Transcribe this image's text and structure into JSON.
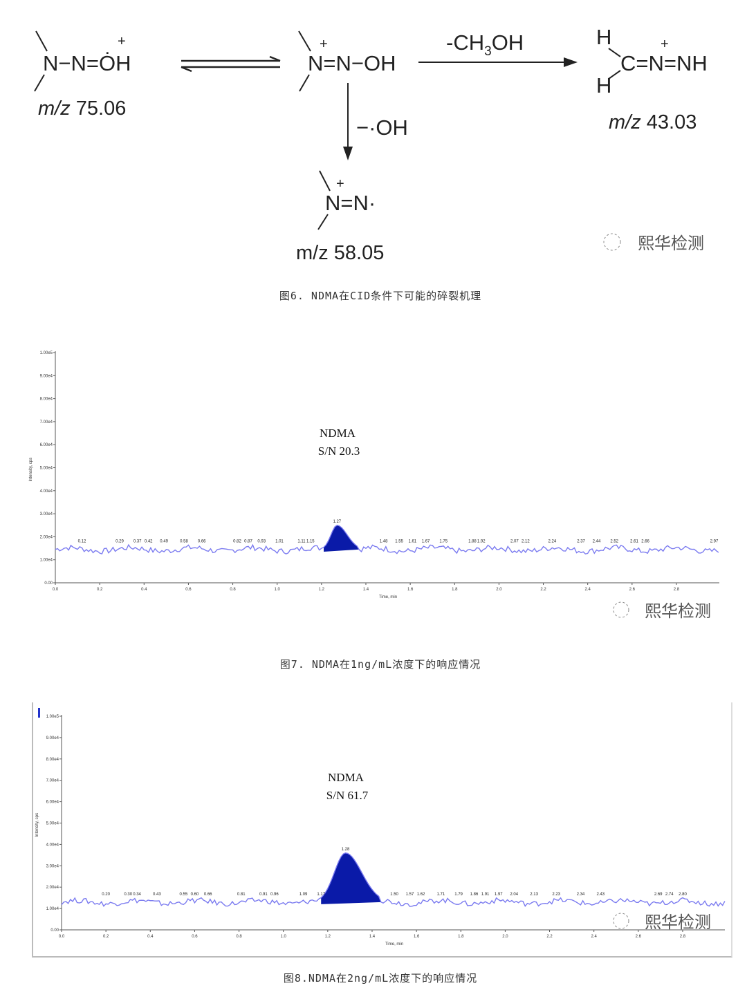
{
  "scheme": {
    "structures": {
      "reactant": {
        "formula": "N−N=ȮH",
        "charge": "+",
        "mz": "75.06"
      },
      "intermediate": {
        "formula": "N=N−OH",
        "charge": "+"
      },
      "product_right": {
        "h_top": "H",
        "formula": "C=N=NH",
        "h_bottom": "H",
        "charge": "+",
        "mz": "43.03"
      },
      "product_down": {
        "formula": "N=N·",
        "charge": "+",
        "mz": "58.05"
      }
    },
    "mz_prefix": "m/z",
    "loss_right": "-CH",
    "loss_right_sub": "3",
    "loss_right_tail": "OH",
    "loss_down": "−·OH",
    "logo": "熙华检测"
  },
  "captions": {
    "fig6": "图6. NDMA在CID条件下可能的碎裂机理",
    "fig7": "图7. NDMA在1ng/mL浓度下的响应情况",
    "fig8": "图8.NDMA在2ng/mL浓度下的响应情况"
  },
  "chart_data": [
    {
      "type": "line",
      "title": "",
      "xlabel": "Time, min",
      "ylabel": "Intensity, cps",
      "xlim": [
        0,
        3.0
      ],
      "ylim": [
        0,
        100000
      ],
      "x_ticks": [
        "0.0",
        "0.2",
        "0.4",
        "0.6",
        "0.8",
        "1.0",
        "1.2",
        "1.4",
        "1.6",
        "1.8",
        "2.0",
        "2.2",
        "2.4",
        "2.6",
        "2.8"
      ],
      "y_ticks": [
        "0.00",
        "1.00e4",
        "2.00e4",
        "3.00e4",
        "4.00e4",
        "5.00e4",
        "6.00e4",
        "7.00e4",
        "8.00e4",
        "9.00e4",
        "1.00e5"
      ],
      "series_color": "#7b7bf0",
      "peak_fill_color": "#0a1aa8",
      "baseline": 14500,
      "peak": {
        "name": "NDMA",
        "sn_label": "S/N 20.3",
        "apex_time": 1.27,
        "apex_intensity": 25000,
        "start": 1.21,
        "end": 1.37
      },
      "peak_labels": [
        "0.12",
        "0.29",
        "0.37",
        "0.42",
        "0.49",
        "0.58",
        "0.66",
        "0.82",
        "0.87",
        "0.93",
        "1.01",
        "1.11",
        "1.15",
        "1.27",
        "1.48",
        "1.55",
        "1.61",
        "1.67",
        "1.75",
        "1.88",
        "1.92",
        "2.07",
        "2.12",
        "2.24",
        "2.37",
        "2.44",
        "2.52",
        "2.61",
        "2.66",
        "2.97"
      ],
      "watermark": "熙华检测"
    },
    {
      "type": "line",
      "title": "",
      "xlabel": "Time, min",
      "ylabel": "Intensity, cps",
      "xlim": [
        0,
        3.0
      ],
      "ylim": [
        0,
        100000
      ],
      "x_ticks": [
        "0.0",
        "0.2",
        "0.4",
        "0.6",
        "0.8",
        "1.0",
        "1.2",
        "1.4",
        "1.6",
        "1.8",
        "2.0",
        "2.2",
        "2.4",
        "2.6",
        "2.8"
      ],
      "y_ticks": [
        "0.00",
        "1.00e4",
        "2.00e4",
        "3.00e4",
        "4.00e4",
        "5.00e4",
        "6.00e4",
        "7.00e4",
        "8.00e4",
        "9.00e4",
        "1.00e5"
      ],
      "series_color": "#7b7bf0",
      "peak_fill_color": "#0a1aa8",
      "baseline": 13000,
      "peak": {
        "name": "NDMA",
        "sn_label": "S/N 61.7",
        "apex_time": 1.28,
        "apex_intensity": 36000,
        "start": 1.17,
        "end": 1.44
      },
      "peak_labels": [
        "0.20",
        "0.30",
        "0.34",
        "0.43",
        "0.55",
        "0.60",
        "0.66",
        "0.81",
        "0.91",
        "0.96",
        "1.09",
        "1.17",
        "1.28",
        "1.50",
        "1.57",
        "1.62",
        "1.71",
        "1.79",
        "1.86",
        "1.91",
        "1.97",
        "2.04",
        "2.13",
        "2.23",
        "2.34",
        "2.43",
        "2.69",
        "2.74",
        "2.80"
      ],
      "watermark": "熙华检测"
    }
  ]
}
